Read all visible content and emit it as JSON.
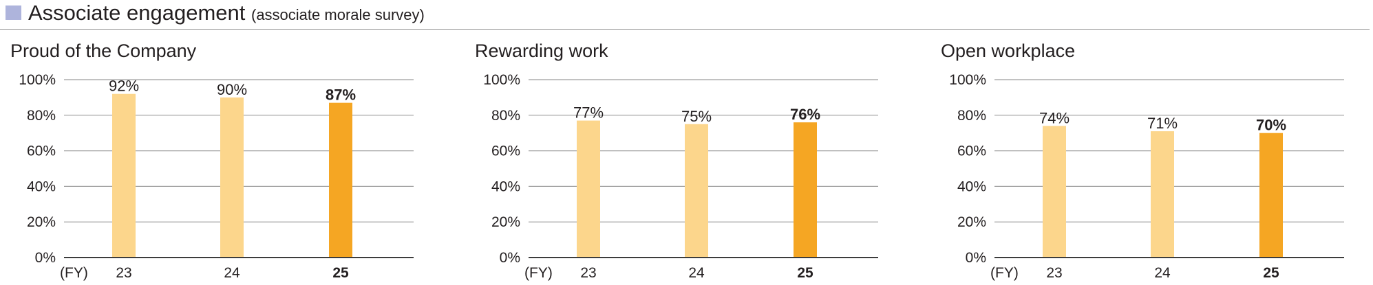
{
  "header": {
    "title": "Associate engagement",
    "subtitle": "(associate morale survey)"
  },
  "colors": {
    "bar_past": "#fcd68c",
    "bar_current": "#f5a623",
    "gridline": "#9e9e9e",
    "axis": "#3c3c3c",
    "marker": "#aeb4dc"
  },
  "x_axis_unit": "(FY)",
  "chart_data": [
    {
      "type": "bar",
      "title": "Proud of the Company",
      "categories": [
        "23",
        "24",
        "25"
      ],
      "values": [
        92,
        90,
        87
      ],
      "value_labels": [
        "92%",
        "90%",
        "87%"
      ],
      "highlight_index": 2,
      "ylim": [
        0,
        100
      ],
      "yticks": [
        0,
        20,
        40,
        60,
        80,
        100
      ],
      "ytick_labels": [
        "0%",
        "20%",
        "40%",
        "60%",
        "80%",
        "100%"
      ],
      "grid": true
    },
    {
      "type": "bar",
      "title": "Rewarding work",
      "categories": [
        "23",
        "24",
        "25"
      ],
      "values": [
        77,
        75,
        76
      ],
      "value_labels": [
        "77%",
        "75%",
        "76%"
      ],
      "highlight_index": 2,
      "ylim": [
        0,
        100
      ],
      "yticks": [
        0,
        20,
        40,
        60,
        80,
        100
      ],
      "ytick_labels": [
        "0%",
        "20%",
        "40%",
        "60%",
        "80%",
        "100%"
      ],
      "grid": true
    },
    {
      "type": "bar",
      "title": "Open workplace",
      "categories": [
        "23",
        "24",
        "25"
      ],
      "values": [
        74,
        71,
        70
      ],
      "value_labels": [
        "74%",
        "71%",
        "70%"
      ],
      "highlight_index": 2,
      "ylim": [
        0,
        100
      ],
      "yticks": [
        0,
        20,
        40,
        60,
        80,
        100
      ],
      "ytick_labels": [
        "0%",
        "20%",
        "40%",
        "60%",
        "80%",
        "100%"
      ],
      "grid": true
    }
  ]
}
